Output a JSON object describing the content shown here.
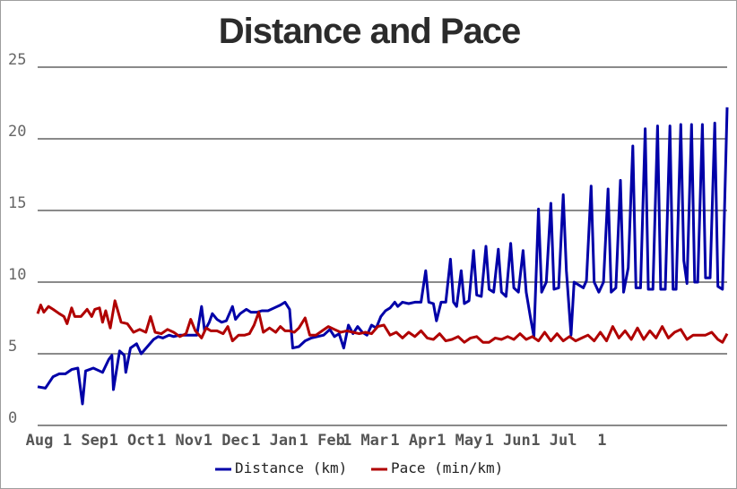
{
  "chart_data": {
    "type": "line",
    "title": "Distance and Pace",
    "xlabel": "",
    "ylabel": "",
    "ylim": [
      0,
      25
    ],
    "y_ticks": [
      "0",
      "5",
      "10",
      "15",
      "20",
      "25"
    ],
    "x_ticks": [
      "Aug",
      "1 Sep",
      "1 Oct",
      "1 Nov",
      "1 Dec",
      "1 Jan",
      "1 Feb",
      "1 Mar",
      "1 Apr",
      "1 May",
      "1 Jun",
      "1 Jul",
      "1"
    ],
    "grid": true,
    "legend_position": "bottom",
    "series": [
      {
        "name": "Distance (km)",
        "color": "#0000a8",
        "points": [
          [
            0,
            2.7
          ],
          [
            5,
            2.6
          ],
          [
            10,
            3.4
          ],
          [
            14,
            3.6
          ],
          [
            18,
            3.6
          ],
          [
            22,
            3.9
          ],
          [
            26,
            4.0
          ],
          [
            29,
            1.5
          ],
          [
            31,
            3.8
          ],
          [
            36,
            4.0
          ],
          [
            40,
            3.8
          ],
          [
            42,
            3.7
          ],
          [
            46,
            4.6
          ],
          [
            48,
            4.9
          ],
          [
            49,
            2.5
          ],
          [
            53,
            5.2
          ],
          [
            56,
            4.9
          ],
          [
            57,
            3.7
          ],
          [
            60,
            5.4
          ],
          [
            64,
            5.7
          ],
          [
            67,
            5.0
          ],
          [
            71,
            5.5
          ],
          [
            75,
            6.0
          ],
          [
            78,
            6.2
          ],
          [
            81,
            6.1
          ],
          [
            85,
            6.3
          ],
          [
            88,
            6.2
          ],
          [
            92,
            6.3
          ],
          [
            96,
            6.3
          ],
          [
            100,
            6.3
          ],
          [
            103,
            6.3
          ],
          [
            106,
            8.3
          ],
          [
            108,
            6.6
          ],
          [
            111,
            7.2
          ],
          [
            113,
            7.8
          ],
          [
            116,
            7.4
          ],
          [
            119,
            7.2
          ],
          [
            122,
            7.3
          ],
          [
            126,
            8.3
          ],
          [
            128,
            7.4
          ],
          [
            131,
            7.8
          ],
          [
            135,
            8.1
          ],
          [
            138,
            7.9
          ],
          [
            142,
            7.9
          ],
          [
            145,
            8.0
          ],
          [
            149,
            8.0
          ],
          [
            153,
            8.2
          ],
          [
            157,
            8.4
          ],
          [
            160,
            8.6
          ],
          [
            163,
            8.1
          ],
          [
            165,
            5.4
          ],
          [
            169,
            5.5
          ],
          [
            173,
            5.9
          ],
          [
            177,
            6.1
          ],
          [
            181,
            6.2
          ],
          [
            185,
            6.3
          ],
          [
            189,
            6.7
          ],
          [
            192,
            6.2
          ],
          [
            195,
            6.4
          ],
          [
            198,
            5.4
          ],
          [
            201,
            7.0
          ],
          [
            204,
            6.4
          ],
          [
            207,
            6.9
          ],
          [
            210,
            6.5
          ],
          [
            213,
            6.3
          ],
          [
            216,
            7.0
          ],
          [
            219,
            6.8
          ],
          [
            222,
            7.6
          ],
          [
            225,
            8.0
          ],
          [
            228,
            8.2
          ],
          [
            231,
            8.6
          ],
          [
            233,
            8.3
          ],
          [
            236,
            8.6
          ],
          [
            240,
            8.5
          ],
          [
            244,
            8.6
          ],
          [
            248,
            8.6
          ],
          [
            251,
            10.8
          ],
          [
            253,
            8.6
          ],
          [
            256,
            8.5
          ],
          [
            258,
            7.3
          ],
          [
            261,
            8.6
          ],
          [
            264,
            8.6
          ],
          [
            267,
            11.6
          ],
          [
            269,
            8.6
          ],
          [
            271,
            8.3
          ],
          [
            274,
            10.8
          ],
          [
            276,
            8.5
          ],
          [
            279,
            8.7
          ],
          [
            282,
            12.2
          ],
          [
            284,
            9.1
          ],
          [
            287,
            9.0
          ],
          [
            290,
            12.5
          ],
          [
            292,
            9.5
          ],
          [
            295,
            9.3
          ],
          [
            298,
            12.3
          ],
          [
            300,
            9.3
          ],
          [
            303,
            9.0
          ],
          [
            306,
            12.7
          ],
          [
            308,
            9.6
          ],
          [
            311,
            9.3
          ],
          [
            314,
            12.2
          ],
          [
            316,
            9.3
          ],
          [
            319,
            7.4
          ],
          [
            321,
            6.2
          ],
          [
            324,
            15.1
          ],
          [
            326,
            9.3
          ],
          [
            329,
            10.0
          ],
          [
            332,
            15.5
          ],
          [
            334,
            9.5
          ],
          [
            337,
            9.6
          ],
          [
            340,
            16.1
          ],
          [
            342,
            10.8
          ],
          [
            345,
            6.3
          ],
          [
            347,
            10.0
          ],
          [
            350,
            9.8
          ],
          [
            353,
            9.6
          ],
          [
            355,
            10.1
          ],
          [
            358,
            16.7
          ],
          [
            360,
            10.0
          ],
          [
            363,
            9.3
          ],
          [
            366,
            10.0
          ],
          [
            369,
            16.5
          ],
          [
            371,
            9.3
          ],
          [
            374,
            9.6
          ],
          [
            377,
            17.1
          ],
          [
            379,
            9.3
          ],
          [
            382,
            11.0
          ],
          [
            385,
            19.5
          ],
          [
            387,
            9.6
          ],
          [
            390,
            9.6
          ],
          [
            393,
            20.7
          ],
          [
            395,
            9.5
          ],
          [
            398,
            9.5
          ],
          [
            401,
            20.9
          ],
          [
            403,
            9.5
          ],
          [
            406,
            9.5
          ],
          [
            409,
            20.9
          ],
          [
            411,
            9.5
          ],
          [
            413,
            9.5
          ],
          [
            416,
            21.0
          ],
          [
            418,
            11.5
          ],
          [
            420,
            9.9
          ],
          [
            423,
            21.0
          ],
          [
            425,
            10.0
          ],
          [
            427,
            10.0
          ],
          [
            430,
            21.0
          ],
          [
            432,
            10.3
          ],
          [
            435,
            10.3
          ],
          [
            438,
            21.1
          ],
          [
            440,
            9.7
          ],
          [
            443,
            9.5
          ],
          [
            446,
            22.2
          ]
        ]
      },
      {
        "name": "Pace (min/km)",
        "color": "#b00000",
        "points": [
          [
            0,
            7.8
          ],
          [
            2,
            8.4
          ],
          [
            4,
            7.9
          ],
          [
            7,
            8.3
          ],
          [
            10,
            8.1
          ],
          [
            14,
            7.8
          ],
          [
            17,
            7.6
          ],
          [
            19,
            7.1
          ],
          [
            22,
            8.2
          ],
          [
            24,
            7.6
          ],
          [
            28,
            7.6
          ],
          [
            32,
            8.1
          ],
          [
            35,
            7.6
          ],
          [
            37,
            8.1
          ],
          [
            40,
            8.2
          ],
          [
            42,
            7.2
          ],
          [
            44,
            8.0
          ],
          [
            47,
            6.8
          ],
          [
            50,
            8.7
          ],
          [
            54,
            7.2
          ],
          [
            58,
            7.1
          ],
          [
            62,
            6.5
          ],
          [
            66,
            6.7
          ],
          [
            70,
            6.5
          ],
          [
            73,
            7.6
          ],
          [
            76,
            6.5
          ],
          [
            80,
            6.4
          ],
          [
            84,
            6.7
          ],
          [
            88,
            6.5
          ],
          [
            92,
            6.2
          ],
          [
            96,
            6.4
          ],
          [
            99,
            7.4
          ],
          [
            102,
            6.6
          ],
          [
            106,
            6.1
          ],
          [
            109,
            6.8
          ],
          [
            112,
            6.6
          ],
          [
            116,
            6.6
          ],
          [
            120,
            6.4
          ],
          [
            123,
            6.9
          ],
          [
            126,
            5.9
          ],
          [
            130,
            6.3
          ],
          [
            134,
            6.3
          ],
          [
            137,
            6.4
          ],
          [
            140,
            7.0
          ],
          [
            143,
            7.9
          ],
          [
            146,
            6.5
          ],
          [
            150,
            6.8
          ],
          [
            154,
            6.5
          ],
          [
            157,
            6.9
          ],
          [
            160,
            6.6
          ],
          [
            163,
            6.6
          ],
          [
            166,
            6.5
          ],
          [
            169,
            6.8
          ],
          [
            173,
            7.5
          ],
          [
            176,
            6.3
          ],
          [
            180,
            6.3
          ],
          [
            184,
            6.6
          ],
          [
            188,
            6.9
          ],
          [
            192,
            6.7
          ],
          [
            196,
            6.5
          ],
          [
            200,
            6.6
          ],
          [
            204,
            6.5
          ],
          [
            208,
            6.4
          ],
          [
            212,
            6.5
          ],
          [
            216,
            6.4
          ],
          [
            220,
            6.9
          ],
          [
            224,
            7.0
          ],
          [
            228,
            6.3
          ],
          [
            232,
            6.5
          ],
          [
            236,
            6.1
          ],
          [
            240,
            6.5
          ],
          [
            244,
            6.2
          ],
          [
            248,
            6.6
          ],
          [
            252,
            6.1
          ],
          [
            256,
            6.0
          ],
          [
            260,
            6.4
          ],
          [
            264,
            5.9
          ],
          [
            268,
            6.0
          ],
          [
            272,
            6.2
          ],
          [
            276,
            5.8
          ],
          [
            280,
            6.1
          ],
          [
            284,
            6.2
          ],
          [
            288,
            5.8
          ],
          [
            292,
            5.8
          ],
          [
            296,
            6.1
          ],
          [
            300,
            6.0
          ],
          [
            304,
            6.2
          ],
          [
            308,
            6.0
          ],
          [
            312,
            6.4
          ],
          [
            316,
            6.0
          ],
          [
            320,
            6.2
          ],
          [
            324,
            5.9
          ],
          [
            328,
            6.5
          ],
          [
            332,
            5.9
          ],
          [
            336,
            6.4
          ],
          [
            340,
            5.9
          ],
          [
            344,
            6.2
          ],
          [
            348,
            5.9
          ],
          [
            352,
            6.1
          ],
          [
            356,
            6.3
          ],
          [
            360,
            5.9
          ],
          [
            364,
            6.5
          ],
          [
            368,
            5.9
          ],
          [
            372,
            6.9
          ],
          [
            376,
            6.1
          ],
          [
            380,
            6.6
          ],
          [
            384,
            6.0
          ],
          [
            388,
            6.8
          ],
          [
            392,
            6.0
          ],
          [
            396,
            6.6
          ],
          [
            400,
            6.1
          ],
          [
            404,
            6.9
          ],
          [
            408,
            6.1
          ],
          [
            412,
            6.5
          ],
          [
            416,
            6.7
          ],
          [
            420,
            6.0
          ],
          [
            424,
            6.3
          ],
          [
            428,
            6.3
          ],
          [
            432,
            6.3
          ],
          [
            436,
            6.5
          ],
          [
            440,
            6.0
          ],
          [
            443,
            5.8
          ],
          [
            446,
            6.4
          ]
        ]
      }
    ]
  }
}
